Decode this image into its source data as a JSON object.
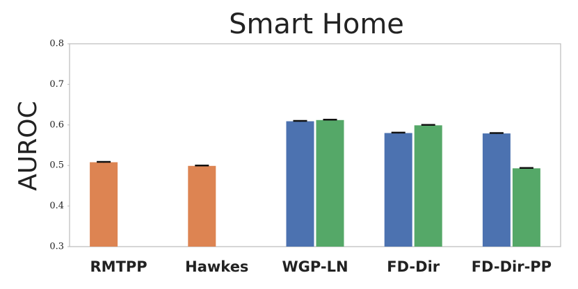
{
  "chart_data": {
    "type": "bar",
    "title": "Smart Home",
    "y_label": "AUROC",
    "categories": [
      "RMTPP",
      "Hawkes",
      "WGP-LN",
      "FD-Dir",
      "FD-Dir-PP"
    ],
    "series": [
      {
        "color": "#dd8452",
        "values": [
          0.508,
          0.499,
          null,
          null,
          null
        ],
        "errors": [
          0.001,
          0.001,
          null,
          null,
          null
        ]
      },
      {
        "color": "#4c72b0",
        "values": [
          null,
          null,
          0.609,
          0.58,
          0.579
        ],
        "errors": [
          null,
          null,
          0.001,
          0.001,
          0.001
        ]
      },
      {
        "color": "#55a868",
        "values": [
          null,
          null,
          0.612,
          0.599,
          0.493
        ],
        "errors": [
          null,
          null,
          0.001,
          0.001,
          0.001
        ]
      }
    ],
    "ylim": [
      0.3,
      0.8
    ],
    "yticks": [
      0.3,
      0.4,
      0.5,
      0.6,
      0.7,
      0.8
    ]
  }
}
